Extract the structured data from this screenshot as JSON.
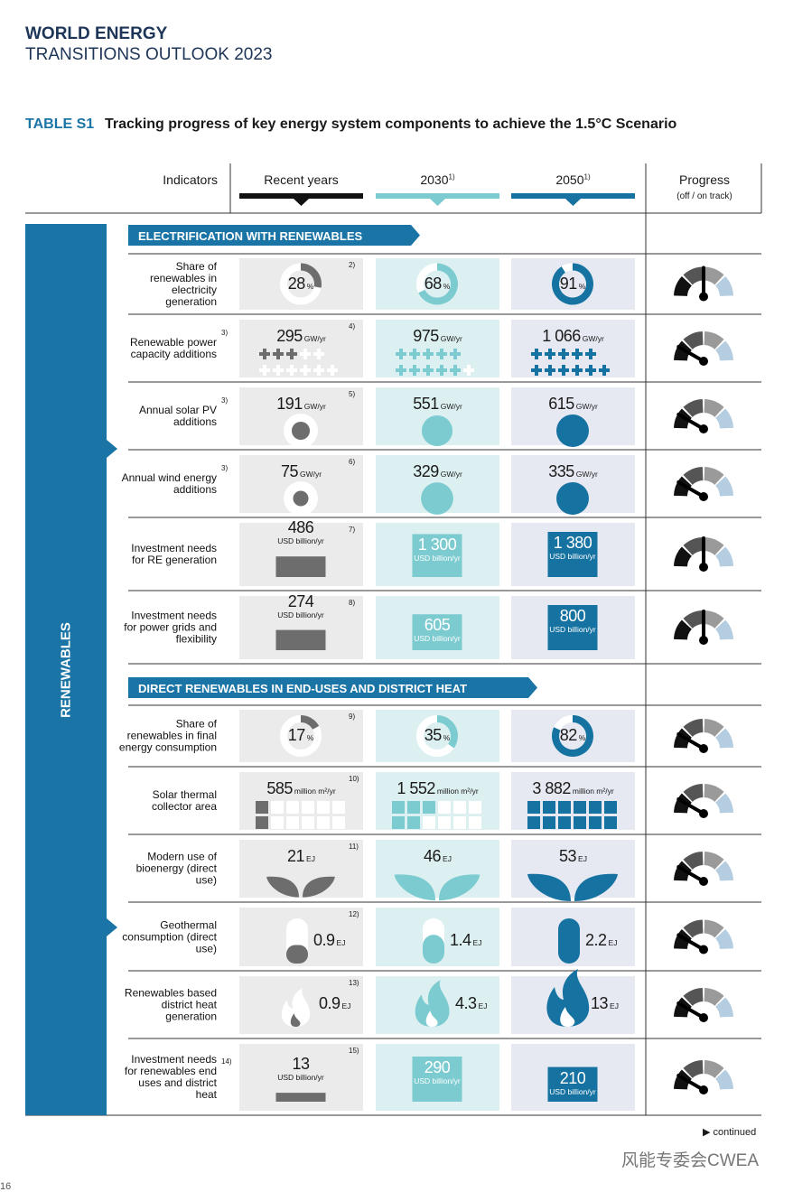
{
  "header": {
    "title1": "WORLD ENERGY",
    "title2": "TRANSITIONS OUTLOOK 2023"
  },
  "table_title": {
    "label": "TABLE S1",
    "text": "Tracking progress of key energy system components to achieve the 1.5°C Scenario"
  },
  "columns": {
    "indicators": "Indicators",
    "recent": "Recent years",
    "y2030": "2030",
    "sup2030": "1)",
    "y2050": "2050",
    "sup2050": "1)",
    "progress": "Progress",
    "progress_sub": "(off / on track)"
  },
  "side_label": "RENEWABLES",
  "sections": [
    {
      "title": "ELECTRIFICATION WITH RENEWABLES",
      "rows": [
        {
          "indicator": "Share of renewables in electricity generation",
          "source": "2)",
          "icon": "donut",
          "recent": {
            "value": "28",
            "unit": "%"
          },
          "y2030": {
            "value": "68",
            "unit": "%"
          },
          "y2050": {
            "value": "91",
            "unit": "%"
          }
        },
        {
          "indicator": "Renewable power capacity additions",
          "note": "3)",
          "source": "4)",
          "icon": "plus",
          "recent": {
            "value": "295",
            "unit": "GW/yr"
          },
          "y2030": {
            "value": "975",
            "unit": "GW/yr"
          },
          "y2050": {
            "value": "1 066",
            "unit": "GW/yr"
          }
        },
        {
          "indicator": "Annual solar PV additions",
          "note": "3)",
          "source": "5)",
          "icon": "circle",
          "recent": {
            "value": "191",
            "unit": "GW/yr"
          },
          "y2030": {
            "value": "551",
            "unit": "GW/yr"
          },
          "y2050": {
            "value": "615",
            "unit": "GW/yr"
          }
        },
        {
          "indicator": "Annual wind energy additions",
          "note": "3)",
          "source": "6)",
          "icon": "circle",
          "recent": {
            "value": "75",
            "unit": "GW/yr"
          },
          "y2030": {
            "value": "329",
            "unit": "GW/yr"
          },
          "y2050": {
            "value": "335",
            "unit": "GW/yr"
          }
        },
        {
          "indicator": "Investment needs for RE generation",
          "source": "7)",
          "icon": "bar",
          "recent": {
            "value": "486",
            "unit": "USD billion/yr"
          },
          "y2030": {
            "value": "1 300",
            "unit": "USD billion/yr"
          },
          "y2050": {
            "value": "1 380",
            "unit": "USD billion/yr"
          }
        },
        {
          "indicator": "Investment needs for power grids and flexibility",
          "source": "8)",
          "icon": "bar",
          "recent": {
            "value": "274",
            "unit": "USD billion/yr"
          },
          "y2030": {
            "value": "605",
            "unit": "USD billion/yr"
          },
          "y2050": {
            "value": "800",
            "unit": "USD billion/yr"
          }
        }
      ]
    },
    {
      "title": "DIRECT RENEWABLES IN END-USES AND DISTRICT HEAT",
      "rows": [
        {
          "indicator": "Share of renewables in final energy consumption",
          "source": "9)",
          "icon": "donut",
          "recent": {
            "value": "17",
            "unit": "%"
          },
          "y2030": {
            "value": "35",
            "unit": "%"
          },
          "y2050": {
            "value": "82",
            "unit": "%"
          }
        },
        {
          "indicator": "Solar thermal collector area",
          "source": "10)",
          "icon": "grid",
          "recent": {
            "value": "585",
            "unit": "million m²/yr"
          },
          "y2030": {
            "value": "1 552",
            "unit": "million m²/yr"
          },
          "y2050": {
            "value": "3 882",
            "unit": "million m²/yr"
          }
        },
        {
          "indicator": "Modern use of bioenergy (direct use)",
          "source": "11)",
          "icon": "leaf",
          "recent": {
            "value": "21",
            "unit": "EJ"
          },
          "y2030": {
            "value": "46",
            "unit": "EJ"
          },
          "y2050": {
            "value": "53",
            "unit": "EJ"
          }
        },
        {
          "indicator": "Geothermal consumption (direct use)",
          "source": "12)",
          "icon": "pill",
          "recent": {
            "value": "0.9",
            "unit": "EJ"
          },
          "y2030": {
            "value": "1.4",
            "unit": "EJ"
          },
          "y2050": {
            "value": "2.2",
            "unit": "EJ"
          }
        },
        {
          "indicator": "Renewables based district heat generation",
          "source": "13)",
          "icon": "flame",
          "recent": {
            "value": "0.9",
            "unit": "EJ"
          },
          "y2030": {
            "value": "4.3",
            "unit": "EJ"
          },
          "y2050": {
            "value": "13",
            "unit": "EJ"
          }
        },
        {
          "indicator": "Investment needs for renewables end uses and district heat",
          "note": "14)",
          "source": "15)",
          "icon": "bar",
          "recent": {
            "value": "13",
            "unit": "USD billion/yr"
          },
          "y2030": {
            "value": "290",
            "unit": "USD billion/yr"
          },
          "y2050": {
            "value": "210",
            "unit": "USD billion/yr"
          }
        }
      ]
    }
  ],
  "footer": {
    "continued": "continued",
    "page": "16",
    "watermark": "风能专委会CWEA"
  }
}
